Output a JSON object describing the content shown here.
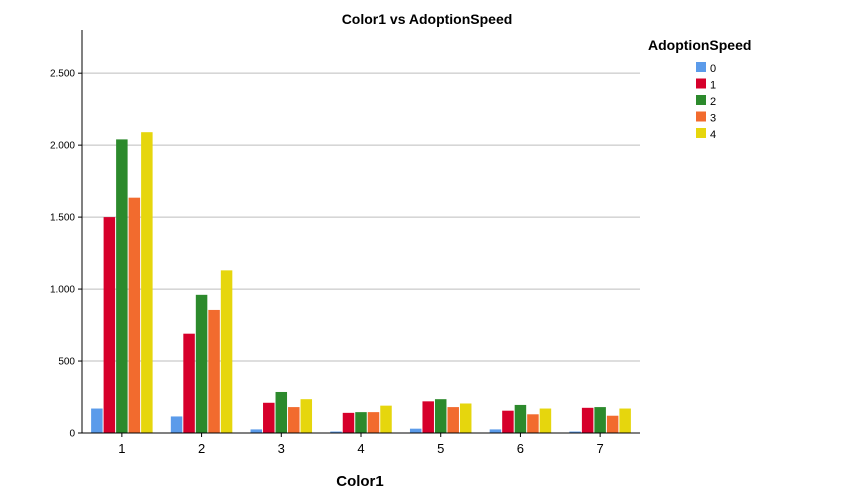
{
  "chart_data": {
    "type": "bar",
    "title": "Color1 vs AdoptionSpeed",
    "xlabel": "Color1",
    "ylabel": "",
    "categories": [
      "1",
      "2",
      "3",
      "4",
      "5",
      "6",
      "7"
    ],
    "ylim": [
      0,
      2800
    ],
    "yticks": [
      0,
      500,
      1000,
      1500,
      2000,
      2500
    ],
    "ytick_labels": [
      "0",
      "500",
      "1.000",
      "1.500",
      "2.000",
      "2.500"
    ],
    "grid": true,
    "legend": {
      "title": "AdoptionSpeed",
      "position": "right"
    },
    "series": [
      {
        "name": "0",
        "color": "#5b9bea",
        "values": [
          170,
          115,
          25,
          10,
          30,
          25,
          10
        ]
      },
      {
        "name": "1",
        "color": "#d6002b",
        "values": [
          1500,
          690,
          210,
          140,
          220,
          155,
          175
        ]
      },
      {
        "name": "2",
        "color": "#2c8a2c",
        "values": [
          2040,
          960,
          285,
          145,
          235,
          195,
          180
        ]
      },
      {
        "name": "3",
        "color": "#f26b2e",
        "values": [
          1635,
          855,
          180,
          145,
          180,
          130,
          120
        ]
      },
      {
        "name": "4",
        "color": "#e6d60d",
        "values": [
          2090,
          1130,
          235,
          190,
          205,
          170,
          170
        ]
      }
    ]
  }
}
